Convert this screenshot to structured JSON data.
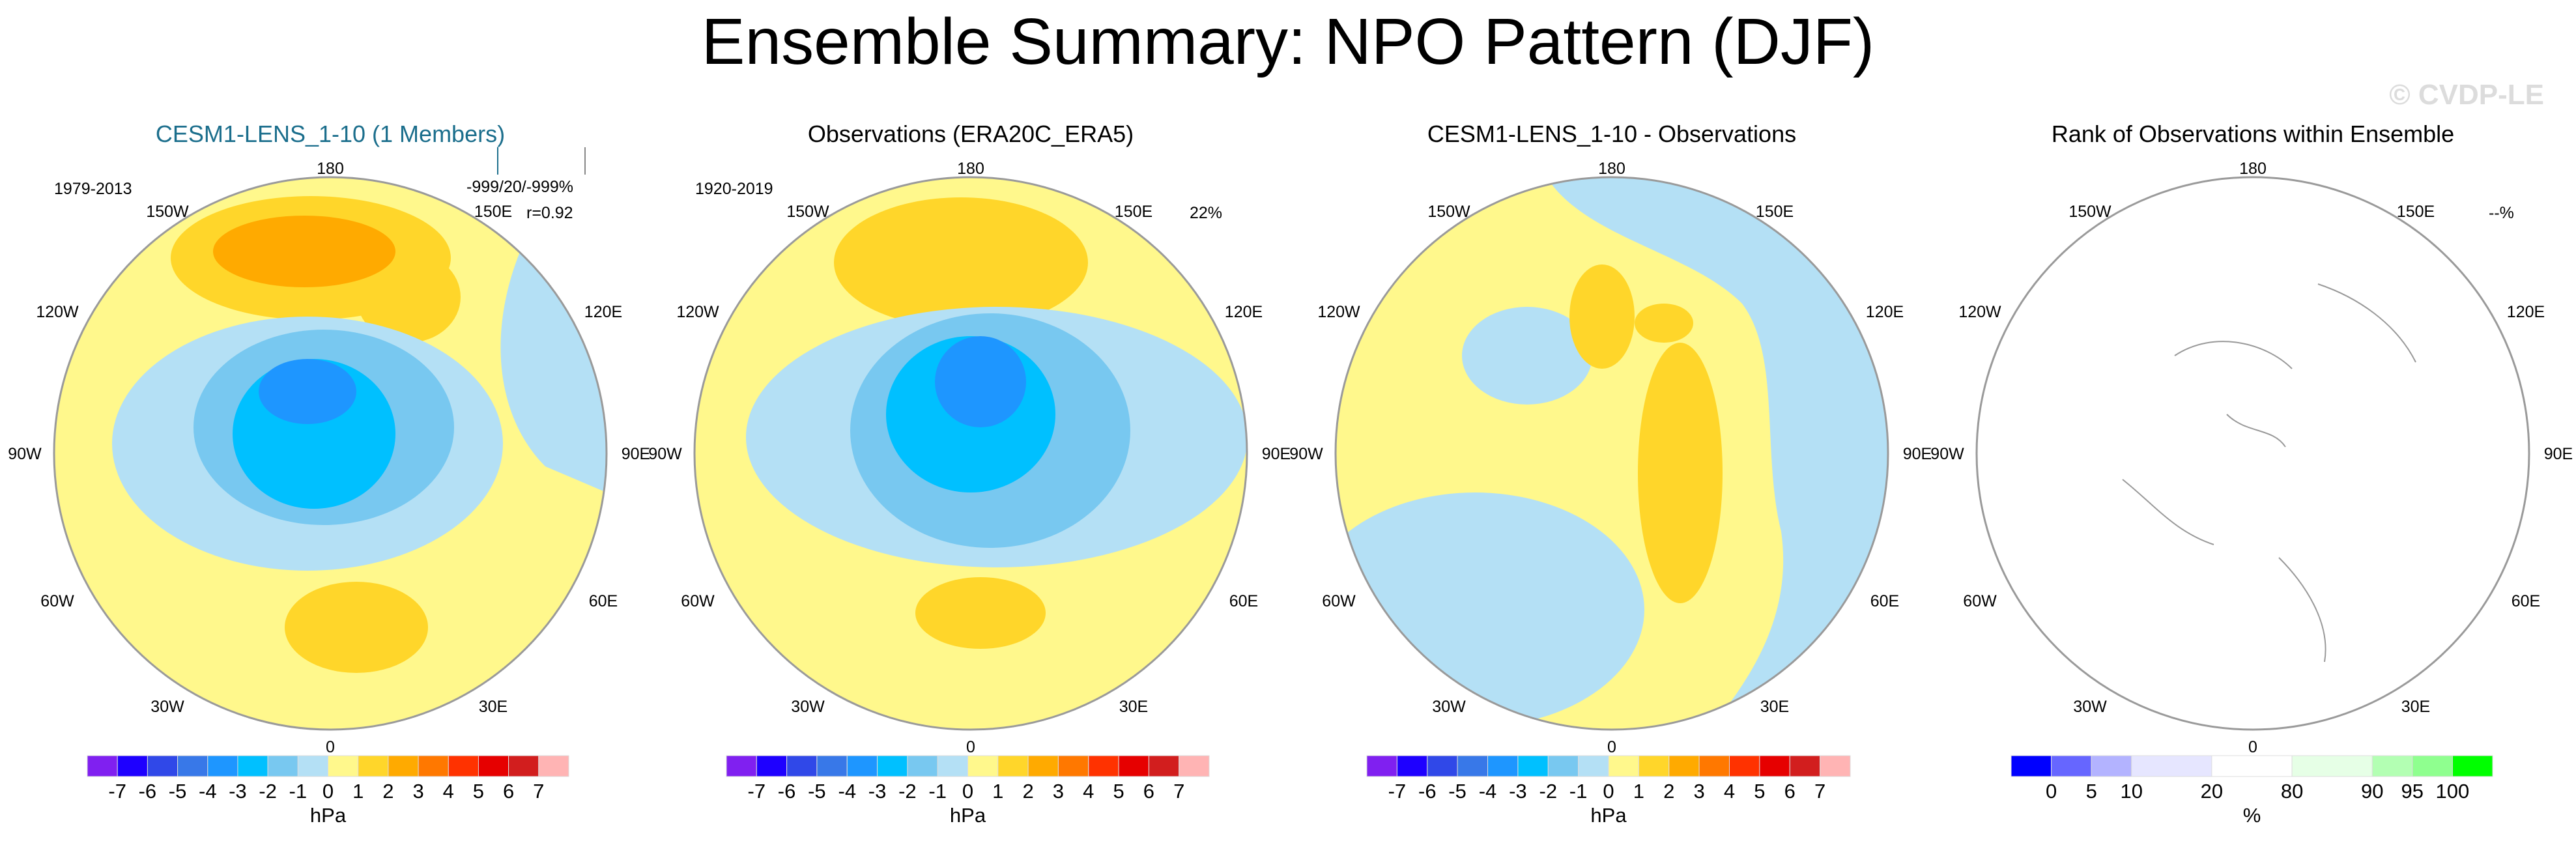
{
  "title": "Ensemble Summary: NPO Pattern (DJF)",
  "watermark": "© CVDP-LE",
  "colors": {
    "title_model": "#1b6e8c",
    "watermark": "#dcdcdc",
    "circle_edge": "#9a9a9a"
  },
  "chart_data": [
    {
      "type": "heatmap",
      "projection": "polar stereographic (Northern Hemisphere)",
      "title": "CESM1-LENS_1-10 (1 Members)",
      "period": "1979-2013",
      "stats": [
        "-999/20/-999%",
        "r=0.92"
      ],
      "lon_labels": [
        "180",
        "150W",
        "120W",
        "90W",
        "60W",
        "30W",
        "0",
        "30E",
        "60E",
        "90E",
        "120E",
        "150E"
      ],
      "colorbar": "hpa"
    },
    {
      "type": "heatmap",
      "projection": "polar stereographic (Northern Hemisphere)",
      "title": "Observations (ERA20C_ERA5)",
      "period": "1920-2019",
      "stats": [
        "22%"
      ],
      "lon_labels": [
        "180",
        "150W",
        "120W",
        "90W",
        "60W",
        "30W",
        "0",
        "30E",
        "60E",
        "90E",
        "120E",
        "150E"
      ],
      "colorbar": "hpa"
    },
    {
      "type": "heatmap",
      "projection": "polar stereographic (Northern Hemisphere)",
      "title": "CESM1-LENS_1-10 - Observations",
      "period": "",
      "stats": [],
      "lon_labels": [
        "180",
        "150W",
        "120W",
        "90W",
        "60W",
        "30W",
        "0",
        "30E",
        "60E",
        "90E",
        "120E",
        "150E"
      ],
      "colorbar": "hpa"
    },
    {
      "type": "heatmap",
      "projection": "polar stereographic (Northern Hemisphere)",
      "title": "Rank of Observations within Ensemble",
      "period": "",
      "stats": [
        "--%"
      ],
      "lon_labels": [
        "180",
        "150W",
        "120W",
        "90W",
        "60W",
        "30W",
        "0",
        "30E",
        "60E",
        "90E",
        "120E",
        "150E"
      ],
      "colorbar": "rank"
    }
  ],
  "colorbars": {
    "hpa": {
      "unit": "hPa",
      "labels": [
        "-7",
        "-6",
        "-5",
        "-4",
        "-3",
        "-2",
        "-1",
        "0",
        "1",
        "2",
        "3",
        "4",
        "5",
        "6",
        "7"
      ],
      "colors": [
        "#8020f0",
        "#1e00ff",
        "#3048e8",
        "#3878e8",
        "#1e96ff",
        "#00c0ff",
        "#78c8f0",
        "#b4e0f5",
        "#fff88c",
        "#ffd62a",
        "#ffaa00",
        "#ff7800",
        "#ff3200",
        "#e60000",
        "#d21e1e",
        "#ffb4b4"
      ]
    },
    "rank": {
      "unit": "%",
      "labels": [
        "0",
        "5",
        "10",
        "20",
        "80",
        "90",
        "95",
        "100"
      ],
      "colors": [
        "#0000ff",
        "#6666ff",
        "#b3b3ff",
        "#e6e6ff",
        "#ffffff",
        "#e6ffe6",
        "#b3ffb3",
        "#8fff8f",
        "#00ff00"
      ]
    }
  }
}
